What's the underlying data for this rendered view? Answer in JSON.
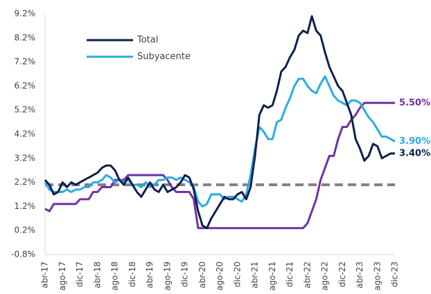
{
  "chart_data": {
    "type": "line",
    "categories": [
      "abr-17",
      null,
      null,
      null,
      "ago-17",
      null,
      null,
      null,
      "dic-17",
      null,
      null,
      null,
      "abr-18",
      null,
      null,
      null,
      "ago-18",
      null,
      null,
      null,
      "dic-18",
      null,
      null,
      null,
      "abr-19",
      null,
      null,
      null,
      "ago-19",
      null,
      null,
      null,
      "dic-19",
      null,
      null,
      null,
      "abr-20",
      null,
      null,
      null,
      "ago-20",
      null,
      null,
      null,
      "dic-20",
      null,
      null,
      null,
      "abr-21",
      null,
      null,
      null,
      "ago-21",
      null,
      null,
      null,
      "dic-21",
      null,
      null,
      null,
      "abr-22",
      null,
      null,
      null,
      "ago-22",
      null,
      null,
      null,
      "dic-22",
      null,
      null,
      null,
      "abr-23",
      null,
      null,
      null,
      "ago-23",
      null,
      null,
      null,
      "dic-23"
    ],
    "series": [
      {
        "name": "Total",
        "color": "#0d1f4f",
        "end_label": "3.40%",
        "values": [
          2.3,
          2.1,
          1.7,
          1.8,
          2.2,
          2.0,
          2.2,
          2.1,
          2.2,
          2.3,
          2.4,
          2.5,
          2.6,
          2.8,
          2.9,
          2.9,
          2.7,
          2.3,
          2.1,
          2.4,
          2.1,
          1.8,
          1.6,
          1.9,
          2.2,
          1.9,
          1.8,
          2.1,
          1.8,
          1.9,
          2.0,
          2.2,
          2.5,
          2.4,
          1.9,
          1.0,
          0.4,
          0.3,
          0.7,
          1.0,
          1.3,
          1.6,
          1.5,
          1.5,
          1.7,
          1.8,
          1.5,
          2.0,
          3.3,
          5.0,
          5.4,
          5.3,
          5.4,
          6.0,
          6.8,
          7.0,
          7.4,
          7.7,
          8.3,
          8.5,
          8.4,
          9.1,
          8.5,
          8.3,
          7.6,
          7.0,
          6.6,
          6.2,
          6.0,
          5.5,
          5.0,
          4.0,
          3.6,
          3.1,
          3.3,
          3.8,
          3.7,
          3.2,
          3.3,
          3.4,
          3.4
        ]
      },
      {
        "name": "Subyacente",
        "color": "#29abe2",
        "end_label": "3.90%",
        "values": [
          2.2,
          1.9,
          1.8,
          1.8,
          1.8,
          1.9,
          1.8,
          1.9,
          1.9,
          2.0,
          2.0,
          2.2,
          2.2,
          2.3,
          2.5,
          2.4,
          2.2,
          2.3,
          2.2,
          2.3,
          2.1,
          2.1,
          2.0,
          2.2,
          2.0,
          2.1,
          2.3,
          2.3,
          2.4,
          2.4,
          2.3,
          2.4,
          2.3,
          2.2,
          2.0,
          1.4,
          1.2,
          1.3,
          1.7,
          1.7,
          1.7,
          1.5,
          1.6,
          1.6,
          1.5,
          1.4,
          1.7,
          2.5,
          3.6,
          4.5,
          4.3,
          4.0,
          4.0,
          4.7,
          4.8,
          5.3,
          5.7,
          6.2,
          6.5,
          6.5,
          6.2,
          6.0,
          5.9,
          6.3,
          6.6,
          6.2,
          5.8,
          5.6,
          5.5,
          5.4,
          5.6,
          5.6,
          5.5,
          5.2,
          4.9,
          4.7,
          4.4,
          4.1,
          4.1,
          4.0,
          3.9
        ]
      },
      {
        "color": "#7030a0",
        "end_label": "5.50%",
        "values": [
          1.1,
          1.0,
          1.3,
          1.3,
          1.3,
          1.3,
          1.3,
          1.3,
          1.5,
          1.5,
          1.5,
          1.8,
          1.8,
          2.0,
          2.0,
          2.0,
          2.3,
          2.3,
          2.3,
          2.5,
          2.5,
          2.5,
          2.5,
          2.5,
          2.5,
          2.5,
          2.5,
          2.5,
          2.3,
          2.0,
          1.8,
          1.8,
          1.8,
          1.8,
          1.5,
          0.3,
          0.3,
          0.3,
          0.3,
          0.3,
          0.3,
          0.3,
          0.3,
          0.3,
          0.3,
          0.3,
          0.3,
          0.3,
          0.3,
          0.3,
          0.3,
          0.3,
          0.3,
          0.3,
          0.3,
          0.3,
          0.3,
          0.3,
          0.3,
          0.3,
          0.5,
          1.0,
          1.5,
          2.3,
          2.8,
          3.3,
          3.3,
          4.0,
          4.5,
          4.5,
          4.8,
          5.0,
          5.3,
          5.5,
          5.5,
          5.5,
          5.5,
          5.5,
          5.5,
          5.5,
          5.5
        ]
      }
    ],
    "reference_line": {
      "value": 2.1,
      "color": "#808080"
    },
    "ylim": [
      -0.8,
      9.2
    ],
    "yticks": [
      {
        "value": -0.8,
        "label": "-0.8%"
      },
      {
        "value": 0.2,
        "label": "0.2%"
      },
      {
        "value": 1.2,
        "label": "1.2%"
      },
      {
        "value": 2.2,
        "label": "2.2%"
      },
      {
        "value": 3.2,
        "label": "3.2%"
      },
      {
        "value": 4.2,
        "label": "4.2%"
      },
      {
        "value": 5.2,
        "label": "5.2%"
      },
      {
        "value": 6.2,
        "label": "6.2%"
      },
      {
        "value": 7.2,
        "label": "7.2%"
      },
      {
        "value": 8.2,
        "label": "8.2%"
      },
      {
        "value": 9.2,
        "label": "9.2%"
      }
    ],
    "grid": false,
    "legend": "upper-left"
  }
}
